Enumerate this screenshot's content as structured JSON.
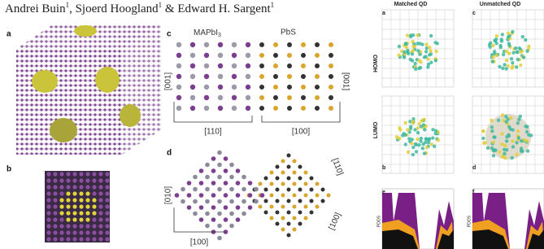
{
  "authors": [
    {
      "name": "Andrei Buin",
      "affiliation": "1"
    },
    {
      "name": "Sjoerd Hoogland",
      "affiliation": "1"
    },
    {
      "name": "Edward H. Sargent",
      "affiliation": "1"
    }
  ],
  "separators": [
    ",",
    "&"
  ],
  "left_figure": {
    "panels": [
      "a",
      "b",
      "c",
      "d"
    ],
    "c": {
      "left_material": {
        "text": "MAPbI",
        "subscript": "3"
      },
      "right_material": "PbS",
      "left_axis": "[001]",
      "right_axis": "[001]",
      "bottom_left": "[110]",
      "bottom_right": "[100]"
    },
    "d": {
      "left_axis": "[010]",
      "bottom_axis": "[100]",
      "top_right_axis": "[110]",
      "bottom_right_axis": "[100]"
    }
  },
  "right_figure": {
    "columns": [
      "Matched QD",
      "Unmatched QD"
    ],
    "rows": [
      "HOMO",
      "LUMO"
    ],
    "panels": [
      "a",
      "b",
      "c",
      "d",
      "e",
      "f"
    ],
    "y_label": "PDOS"
  }
}
